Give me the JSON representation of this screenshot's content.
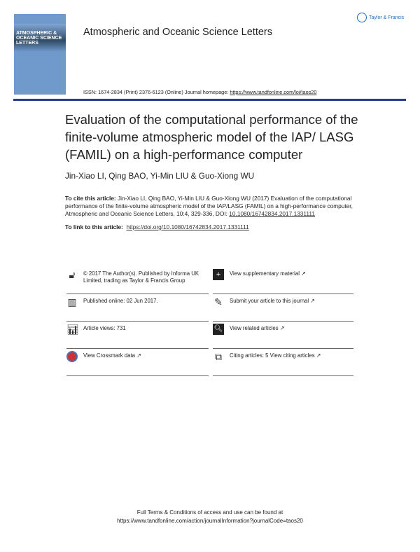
{
  "journal": {
    "title": "Atmospheric and Oceanic Science Letters",
    "cover_text": "ATMOSPHERIC &\nOCEANIC SCIENCE\nLETTERS",
    "publisher_logo": "Taylor & Francis",
    "issn_line": "ISSN: 1674-2834 (Print) 2376-6123 (Online) Journal homepage: ",
    "homepage": "https://www.tandfonline.com/loi/taos20",
    "rule_color": "#2b3a8c"
  },
  "article": {
    "title": "Evaluation of the computational performance of the finite-volume atmospheric model of the IAP/ LASG (FAMIL) on a high-performance computer",
    "authors": "Jin-Xiao LI, Qing BAO, Yi-Min LIU & Guo-Xiong WU",
    "cite_label": "To cite this article:",
    "cite_text": " Jin-Xiao LI, Qing BAO, Yi-Min LIU & Guo-Xiong WU (2017) Evaluation of the computational performance of the finite-volume atmospheric model of the IAP/LASG (FAMIL) on a high-performance computer, Atmospheric and Oceanic Science Letters, 10:4, 329-336, DOI: ",
    "cite_doi": "10.1080/16742834.2017.1331111",
    "link_label": "To link to this article:",
    "link_url": "https://doi.org/10.1080/16742834.2017.1331111"
  },
  "info": [
    {
      "icon": "open-access-icon",
      "text": "© 2017 The Author(s). Published by Informa UK Limited, trading as Taylor & Francis Group"
    },
    {
      "icon": "supplementary-icon",
      "text": "View supplementary material ↗"
    },
    {
      "icon": "calendar-icon",
      "text": "Published online: 02 Jun 2017."
    },
    {
      "icon": "edit-icon",
      "text": "Submit your article to this journal ↗"
    },
    {
      "icon": "bar-chart-icon",
      "text": "Article views: 731"
    },
    {
      "icon": "search-document-icon",
      "text": "View related articles ↗"
    },
    {
      "icon": "crossmark-icon",
      "text": "View Crossmark data ↗"
    },
    {
      "icon": "citing-icon",
      "text": "Citing articles: 5 View citing articles ↗"
    }
  ],
  "footer": {
    "line1": "Full Terms & Conditions of access and use can be found at",
    "line2": "https://www.tandfonline.com/action/journalInformation?journalCode=taos20"
  }
}
